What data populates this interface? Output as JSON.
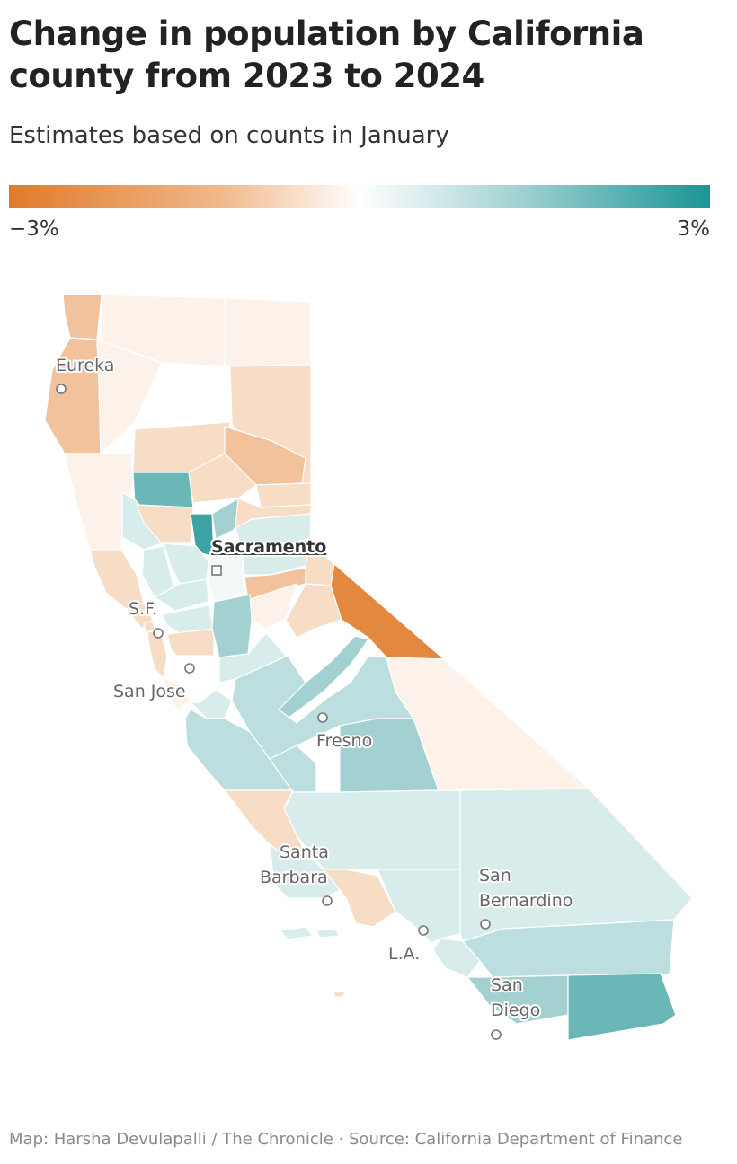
{
  "header": {
    "title": "Change in population by California county from 2023 to 2024",
    "subtitle": "Estimates based on counts in January"
  },
  "legend": {
    "min_label": "−3%",
    "max_label": "3%",
    "colors": [
      "#e07b2a",
      "#ffffff",
      "#1a9595"
    ]
  },
  "map": {
    "cities": {
      "eureka": "Eureka",
      "sacramento": "Sacramento",
      "sf": "S.F.",
      "san_jose": "San Jose",
      "fresno": "Fresno",
      "santa_barbara_1": "Santa",
      "santa_barbara_2": "Barbara",
      "san_bernardino_1": "San",
      "san_bernardino_2": "Bernardino",
      "la": "L.A.",
      "san_diego_1": "San",
      "san_diego_2": "Diego"
    },
    "colors": {
      "strong_decline": "#e2883f",
      "moderate_decline": "#f2c29d",
      "mild_decline": "#f7dcc6",
      "slight_decline": "#fdf2e9",
      "neutral": "#ffffff",
      "slight_growth": "#d9ecec",
      "mild_growth": "#bcdedf",
      "moderate_growth": "#a3d1d2",
      "strong_growth": "#6bb7b8",
      "top_growth": "#3ea1a3"
    }
  },
  "footer": {
    "credit": "Map: Harsha Devulapalli / The Chronicle · Source: California Department of Finance"
  }
}
